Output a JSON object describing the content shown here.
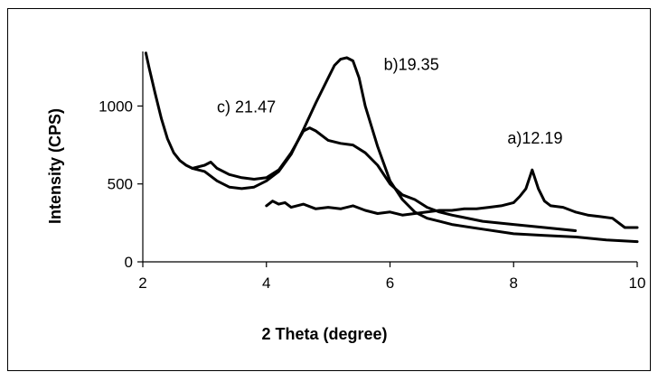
{
  "chart_data": {
    "type": "line",
    "title": "",
    "xlabel": "2 Theta (degree)",
    "ylabel": "Intensity (CPS)",
    "xlim": [
      2,
      10
    ],
    "ylim": [
      0,
      1350
    ],
    "xticks": [
      "2",
      "4",
      "6",
      "8",
      "10"
    ],
    "yticks": [
      "0",
      "500",
      "1000"
    ],
    "grid": false,
    "legend": "none",
    "annotations": [
      {
        "text": "c) 21.47",
        "x": 3.2,
        "y": 960
      },
      {
        "text": "b)19.35",
        "x": 5.9,
        "y": 1230
      },
      {
        "text": "a)12.19",
        "x": 7.9,
        "y": 760
      }
    ],
    "series": [
      {
        "label": "a",
        "x": [
          4.0,
          4.1,
          4.2,
          4.3,
          4.4,
          4.6,
          4.8,
          5.0,
          5.2,
          5.4,
          5.6,
          5.8,
          6.0,
          6.2,
          6.4,
          6.6,
          6.8,
          7.0,
          7.2,
          7.4,
          7.6,
          7.8,
          8.0,
          8.1,
          8.2,
          8.3,
          8.4,
          8.5,
          8.6,
          8.8,
          9.0,
          9.2,
          9.4,
          9.6,
          9.8,
          10.0
        ],
        "y": [
          360,
          390,
          370,
          380,
          350,
          370,
          340,
          350,
          340,
          360,
          330,
          310,
          320,
          300,
          310,
          320,
          330,
          330,
          340,
          340,
          350,
          360,
          380,
          420,
          470,
          590,
          470,
          390,
          360,
          350,
          320,
          300,
          290,
          280,
          220,
          220
        ]
      },
      {
        "label": "b",
        "x": [
          2.05,
          2.1,
          2.2,
          2.3,
          2.4,
          2.5,
          2.6,
          2.7,
          2.8,
          3.0,
          3.2,
          3.4,
          3.6,
          3.8,
          4.0,
          4.2,
          4.4,
          4.6,
          4.8,
          5.0,
          5.1,
          5.2,
          5.3,
          5.4,
          5.5,
          5.6,
          5.8,
          6.0,
          6.2,
          6.4,
          6.6,
          6.8,
          7.0,
          7.5,
          8.0,
          8.5,
          9.0,
          9.5,
          10.0
        ],
        "y": [
          1340,
          1250,
          1080,
          920,
          790,
          700,
          650,
          620,
          600,
          580,
          520,
          480,
          470,
          480,
          520,
          580,
          690,
          850,
          1020,
          1180,
          1260,
          1300,
          1310,
          1290,
          1180,
          1000,
          740,
          520,
          400,
          320,
          280,
          260,
          240,
          210,
          180,
          170,
          160,
          140,
          130
        ]
      },
      {
        "label": "c",
        "x": [
          2.8,
          3.0,
          3.1,
          3.2,
          3.4,
          3.6,
          3.8,
          4.0,
          4.2,
          4.4,
          4.6,
          4.7,
          4.8,
          5.0,
          5.2,
          5.4,
          5.6,
          5.8,
          6.0,
          6.2,
          6.4,
          6.6,
          6.8,
          7.0,
          7.5,
          8.0,
          8.5,
          9.0
        ],
        "y": [
          600,
          620,
          640,
          600,
          560,
          540,
          530,
          540,
          590,
          700,
          840,
          860,
          840,
          780,
          760,
          750,
          700,
          620,
          500,
          430,
          400,
          350,
          320,
          300,
          260,
          240,
          220,
          200
        ]
      }
    ]
  }
}
